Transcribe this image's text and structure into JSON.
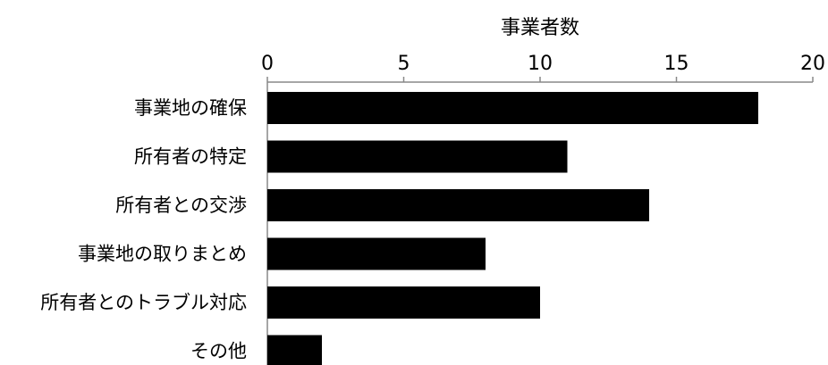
{
  "chart_data": {
    "type": "bar",
    "orientation": "horizontal",
    "xlabel": "事業者数",
    "xlim": [
      0,
      20
    ],
    "xticks": [
      0,
      5,
      10,
      15,
      20
    ],
    "x_axis_position": "top",
    "grid": false,
    "categories": [
      "事業地の確保",
      "所有者の特定",
      "所有者との交渉",
      "事業地の取りまとめ",
      "所有者とのトラブル対応",
      "その他"
    ],
    "values": [
      18,
      11,
      14,
      8,
      10,
      2
    ],
    "bar_color": "#000000"
  }
}
